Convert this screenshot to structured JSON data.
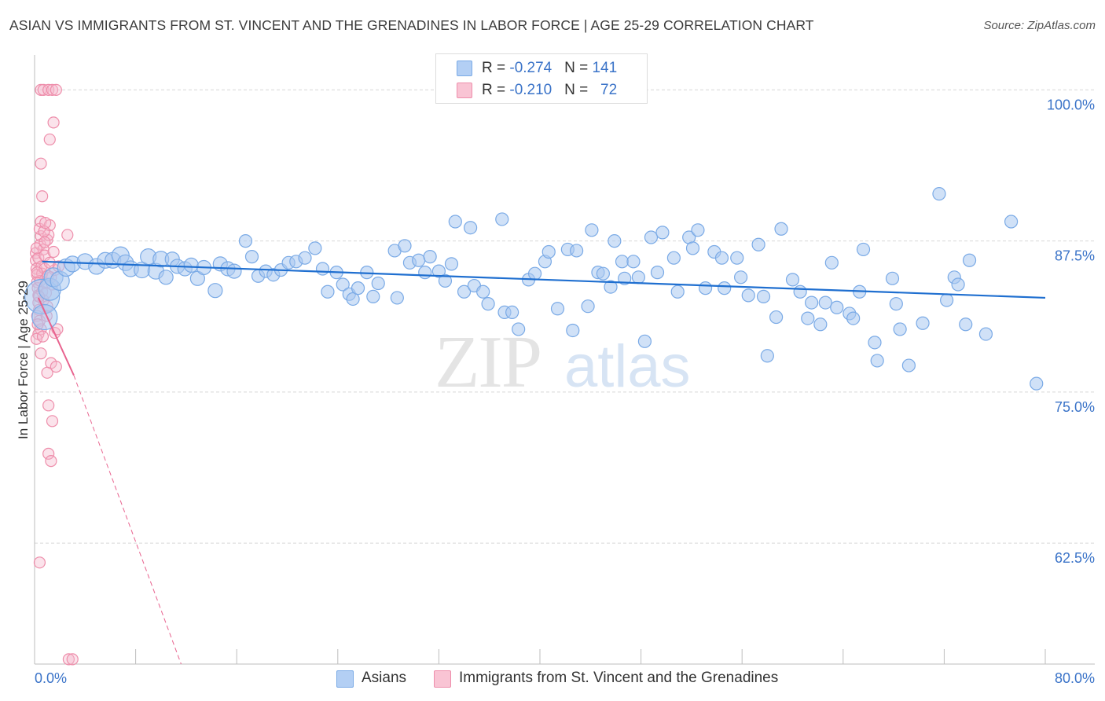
{
  "title": "ASIAN VS IMMIGRANTS FROM ST. VINCENT AND THE GRENADINES IN LABOR FORCE | AGE 25-29 CORRELATION CHART",
  "source": "Source: ZipAtlas.com",
  "legend": {
    "row1": {
      "r_label": "R = ",
      "r_value": "-0.274",
      "n_label": "N = ",
      "n_value": "141"
    },
    "row2": {
      "r_label": "R = ",
      "r_value": "-0.210",
      "n_label": "N = ",
      "n_value": "72"
    }
  },
  "bottom_legend": {
    "series1": "Asians",
    "series2": "Immigrants from St. Vincent and the Grenadines"
  },
  "watermark": {
    "zip": "ZIP",
    "atlas": "atlas"
  },
  "colors": {
    "asian_fill": "#a9c8f0",
    "asian_stroke": "#7aaae6",
    "asian_line": "#1f6fd0",
    "svg_fill": "#f6b8cc",
    "svg_stroke": "#ee8eab",
    "svg_line": "#e8628e",
    "grid": "#d8d8d8",
    "tick_label": "#3a73c8"
  },
  "chart_data": {
    "type": "scatter",
    "title": "ASIAN VS IMMIGRANTS FROM ST. VINCENT AND THE GRENADINES IN LABOR FORCE | AGE 25-29 CORRELATION CHART",
    "xlabel": "",
    "ylabel": "In Labor Force | Age 25-29",
    "xlim": [
      0,
      80
    ],
    "ylim": [
      52.5,
      102.3
    ],
    "x_tick_labels": [
      "0.0%",
      "80.0%"
    ],
    "y_ticks": [
      100.0,
      87.5,
      75.0,
      62.5
    ],
    "y_tick_labels": [
      "100.0%",
      "87.5%",
      "75.0%",
      "62.5%"
    ],
    "grid": true,
    "legend_position": "top-center",
    "series": [
      {
        "name": "Asians",
        "r": -0.274,
        "n": 141,
        "trend": {
          "x": [
            0.6,
            80.0
          ],
          "y": [
            85.8,
            82.8
          ]
        },
        "points": [
          [
            0.6,
            82.9,
            2.2
          ],
          [
            0.8,
            81.2,
            1.6
          ],
          [
            1.2,
            83.5,
            1.4
          ],
          [
            1.5,
            84.5,
            1.2
          ],
          [
            2.0,
            84.2,
            1.2
          ],
          [
            2.5,
            85.3,
            1.1
          ],
          [
            3.0,
            85.6,
            1.0
          ],
          [
            4.0,
            85.8,
            1.0
          ],
          [
            4.9,
            85.4,
            1.0
          ],
          [
            5.6,
            85.9,
            1.0
          ],
          [
            6.2,
            85.9,
            1.0
          ],
          [
            6.8,
            86.3,
            1.1
          ],
          [
            7.2,
            85.7,
            1.0
          ],
          [
            7.6,
            85.2,
            1.0
          ],
          [
            8.5,
            85.1,
            1.0
          ],
          [
            9.0,
            86.2,
            1.0
          ],
          [
            9.6,
            85.0,
            1.0
          ],
          [
            10.0,
            86.0,
            1.0
          ],
          [
            10.4,
            84.5,
            0.9
          ],
          [
            10.9,
            86.0,
            0.9
          ],
          [
            11.3,
            85.4,
            0.9
          ],
          [
            11.9,
            85.2,
            0.9
          ],
          [
            12.4,
            85.5,
            0.9
          ],
          [
            12.9,
            84.4,
            0.9
          ],
          [
            13.4,
            85.3,
            0.9
          ],
          [
            14.3,
            83.4,
            0.9
          ],
          [
            14.7,
            85.6,
            0.9
          ],
          [
            15.3,
            85.2,
            0.9
          ],
          [
            15.8,
            85.0,
            0.9
          ],
          [
            16.7,
            87.5,
            0.8
          ],
          [
            17.2,
            86.2,
            0.8
          ],
          [
            17.7,
            84.6,
            0.8
          ],
          [
            18.3,
            85.0,
            0.8
          ],
          [
            18.9,
            84.7,
            0.8
          ],
          [
            19.5,
            85.1,
            0.8
          ],
          [
            20.1,
            85.7,
            0.8
          ],
          [
            20.7,
            85.8,
            0.8
          ],
          [
            21.4,
            86.1,
            0.8
          ],
          [
            22.2,
            86.9,
            0.8
          ],
          [
            22.8,
            85.2,
            0.8
          ],
          [
            23.2,
            83.3,
            0.8
          ],
          [
            23.9,
            84.9,
            0.8
          ],
          [
            24.4,
            83.9,
            0.8
          ],
          [
            24.9,
            83.1,
            0.8
          ],
          [
            25.2,
            82.7,
            0.8
          ],
          [
            25.6,
            83.6,
            0.8
          ],
          [
            26.3,
            84.9,
            0.8
          ],
          [
            26.8,
            82.9,
            0.8
          ],
          [
            27.2,
            84.0,
            0.8
          ],
          [
            28.5,
            86.7,
            0.8
          ],
          [
            28.7,
            82.8,
            0.8
          ],
          [
            29.3,
            87.1,
            0.8
          ],
          [
            29.7,
            85.7,
            0.8
          ],
          [
            30.4,
            85.9,
            0.8
          ],
          [
            30.9,
            84.9,
            0.8
          ],
          [
            31.3,
            86.2,
            0.8
          ],
          [
            32.0,
            85.0,
            0.8
          ],
          [
            32.5,
            84.2,
            0.8
          ],
          [
            33.0,
            85.6,
            0.8
          ],
          [
            33.3,
            89.1,
            0.8
          ],
          [
            34.0,
            83.3,
            0.8
          ],
          [
            34.5,
            88.6,
            0.8
          ],
          [
            34.8,
            83.8,
            0.8
          ],
          [
            35.5,
            83.3,
            0.8
          ],
          [
            35.9,
            82.3,
            0.8
          ],
          [
            37.0,
            89.3,
            0.8
          ],
          [
            37.2,
            81.6,
            0.8
          ],
          [
            37.8,
            81.6,
            0.8
          ],
          [
            38.3,
            80.2,
            0.8
          ],
          [
            39.1,
            84.3,
            0.8
          ],
          [
            39.6,
            84.8,
            0.8
          ],
          [
            40.4,
            85.8,
            0.8
          ],
          [
            40.7,
            86.6,
            0.8
          ],
          [
            41.4,
            81.9,
            0.8
          ],
          [
            42.2,
            86.8,
            0.8
          ],
          [
            42.6,
            80.1,
            0.8
          ],
          [
            42.9,
            86.7,
            0.8
          ],
          [
            43.8,
            82.1,
            0.8
          ],
          [
            44.1,
            88.4,
            0.8
          ],
          [
            44.6,
            84.9,
            0.8
          ],
          [
            45.0,
            84.8,
            0.8
          ],
          [
            45.6,
            83.7,
            0.8
          ],
          [
            45.9,
            87.5,
            0.8
          ],
          [
            46.5,
            85.8,
            0.8
          ],
          [
            46.7,
            84.4,
            0.8
          ],
          [
            47.4,
            85.8,
            0.8
          ],
          [
            47.8,
            84.5,
            0.8
          ],
          [
            48.3,
            79.2,
            0.8
          ],
          [
            48.8,
            87.8,
            0.8
          ],
          [
            49.3,
            84.9,
            0.8
          ],
          [
            49.7,
            88.2,
            0.8
          ],
          [
            50.6,
            86.1,
            0.8
          ],
          [
            50.9,
            83.3,
            0.8
          ],
          [
            51.8,
            87.8,
            0.8
          ],
          [
            52.1,
            86.9,
            0.8
          ],
          [
            52.5,
            88.4,
            0.8
          ],
          [
            53.1,
            83.6,
            0.8
          ],
          [
            53.8,
            86.6,
            0.8
          ],
          [
            54.4,
            86.1,
            0.8
          ],
          [
            54.6,
            83.6,
            0.8
          ],
          [
            55.6,
            86.1,
            0.8
          ],
          [
            55.9,
            84.5,
            0.8
          ],
          [
            56.5,
            83.0,
            0.8
          ],
          [
            57.3,
            87.2,
            0.8
          ],
          [
            57.7,
            82.9,
            0.8
          ],
          [
            58.0,
            78.0,
            0.8
          ],
          [
            58.7,
            81.2,
            0.8
          ],
          [
            59.1,
            88.5,
            0.8
          ],
          [
            60.0,
            84.3,
            0.8
          ],
          [
            60.6,
            83.3,
            0.8
          ],
          [
            61.2,
            81.1,
            0.8
          ],
          [
            61.5,
            82.4,
            0.8
          ],
          [
            62.2,
            80.6,
            0.8
          ],
          [
            62.6,
            82.4,
            0.8
          ],
          [
            63.1,
            85.7,
            0.8
          ],
          [
            63.5,
            82.0,
            0.8
          ],
          [
            64.5,
            81.5,
            0.8
          ],
          [
            64.8,
            81.1,
            0.8
          ],
          [
            65.3,
            83.3,
            0.8
          ],
          [
            65.6,
            86.8,
            0.8
          ],
          [
            66.5,
            79.1,
            0.8
          ],
          [
            66.7,
            77.6,
            0.8
          ],
          [
            67.9,
            84.4,
            0.8
          ],
          [
            68.2,
            82.3,
            0.8
          ],
          [
            68.5,
            80.2,
            0.8
          ],
          [
            69.2,
            77.2,
            0.8
          ],
          [
            70.3,
            80.7,
            0.8
          ],
          [
            71.6,
            91.4,
            0.8
          ],
          [
            72.2,
            82.6,
            0.8
          ],
          [
            72.8,
            84.5,
            0.8
          ],
          [
            73.1,
            83.9,
            0.8
          ],
          [
            73.7,
            80.6,
            0.8
          ],
          [
            74.0,
            85.9,
            0.8
          ],
          [
            75.3,
            79.8,
            0.8
          ],
          [
            77.3,
            89.1,
            0.8
          ],
          [
            79.3,
            75.7,
            0.8
          ]
        ]
      },
      {
        "name": "Immigrants from St. Vincent and the Grenadines",
        "r": -0.21,
        "n": 72,
        "trend_solid": {
          "x": [
            0.3,
            3.1
          ],
          "y": [
            82.8,
            76.4
          ]
        },
        "trend_dashed": {
          "x": [
            3.1,
            11.6
          ],
          "y": [
            76.4,
            52.5
          ]
        },
        "points": [
          [
            0.1,
            86.5,
            0.7
          ],
          [
            0.1,
            85.9,
            0.7
          ],
          [
            0.15,
            85.2,
            0.7
          ],
          [
            0.2,
            84.7,
            0.7
          ],
          [
            0.2,
            84.1,
            0.7
          ],
          [
            0.25,
            83.6,
            0.7
          ],
          [
            0.3,
            83.0,
            0.7
          ],
          [
            0.3,
            82.4,
            0.7
          ],
          [
            0.35,
            81.8,
            0.7
          ],
          [
            0.2,
            81.3,
            0.7
          ],
          [
            0.4,
            80.9,
            0.7
          ],
          [
            0.5,
            80.2,
            0.7
          ],
          [
            0.3,
            79.8,
            0.7
          ],
          [
            0.45,
            87.2,
            0.7
          ],
          [
            0.5,
            87.9,
            0.7
          ],
          [
            0.4,
            88.5,
            0.7
          ],
          [
            0.5,
            89.1,
            0.7
          ],
          [
            0.3,
            86.1,
            0.7
          ],
          [
            0.55,
            85.4,
            0.7
          ],
          [
            0.6,
            84.8,
            0.7
          ],
          [
            0.45,
            84.2,
            0.7
          ],
          [
            0.6,
            83.3,
            0.7
          ],
          [
            0.7,
            82.6,
            0.7
          ],
          [
            0.7,
            86.8,
            0.7
          ],
          [
            0.8,
            86.3,
            0.7
          ],
          [
            0.8,
            85.2,
            0.7
          ],
          [
            0.9,
            84.0,
            0.7
          ],
          [
            0.9,
            83.2,
            0.7
          ],
          [
            1.0,
            82.1,
            0.7
          ],
          [
            1.0,
            87.6,
            0.7
          ],
          [
            1.1,
            88.0,
            0.7
          ],
          [
            1.2,
            88.8,
            0.7
          ],
          [
            1.3,
            84.5,
            0.7
          ],
          [
            1.4,
            83.9,
            0.7
          ],
          [
            1.6,
            85.1,
            0.7
          ],
          [
            1.6,
            79.9,
            0.7
          ],
          [
            1.8,
            80.2,
            0.7
          ],
          [
            0.6,
            91.2,
            0.7
          ],
          [
            0.5,
            93.9,
            0.7
          ],
          [
            1.2,
            95.9,
            0.7
          ],
          [
            1.5,
            97.3,
            0.7
          ],
          [
            0.5,
            100.0,
            0.7
          ],
          [
            0.7,
            100.0,
            0.7
          ],
          [
            1.1,
            100.0,
            0.7
          ],
          [
            1.4,
            100.0,
            0.7
          ],
          [
            1.7,
            100.0,
            0.7
          ],
          [
            2.6,
            88.0,
            0.7
          ],
          [
            1.3,
            77.4,
            0.7
          ],
          [
            1.0,
            76.6,
            0.7
          ],
          [
            1.7,
            77.1,
            0.7
          ],
          [
            1.1,
            73.9,
            0.7
          ],
          [
            1.4,
            72.6,
            0.7
          ],
          [
            1.1,
            69.9,
            0.7
          ],
          [
            1.3,
            69.3,
            0.7
          ],
          [
            0.4,
            60.9,
            0.7
          ],
          [
            2.7,
            52.9,
            0.7
          ],
          [
            3.0,
            52.9,
            0.7
          ],
          [
            0.15,
            79.4,
            0.7
          ],
          [
            0.25,
            80.6,
            0.7
          ],
          [
            0.35,
            82.9,
            0.7
          ],
          [
            0.2,
            84.9,
            0.7
          ],
          [
            0.15,
            86.9,
            0.7
          ],
          [
            0.8,
            87.4,
            0.7
          ],
          [
            1.5,
            86.6,
            0.7
          ],
          [
            1.2,
            85.7,
            0.7
          ],
          [
            0.65,
            79.6,
            0.7
          ],
          [
            0.95,
            81.3,
            0.7
          ],
          [
            0.5,
            78.2,
            0.7
          ],
          [
            1.9,
            85.4,
            0.7
          ],
          [
            0.75,
            88.3,
            0.7
          ],
          [
            1.05,
            84.6,
            0.7
          ],
          [
            0.85,
            89.0,
            0.7
          ]
        ]
      }
    ]
  }
}
